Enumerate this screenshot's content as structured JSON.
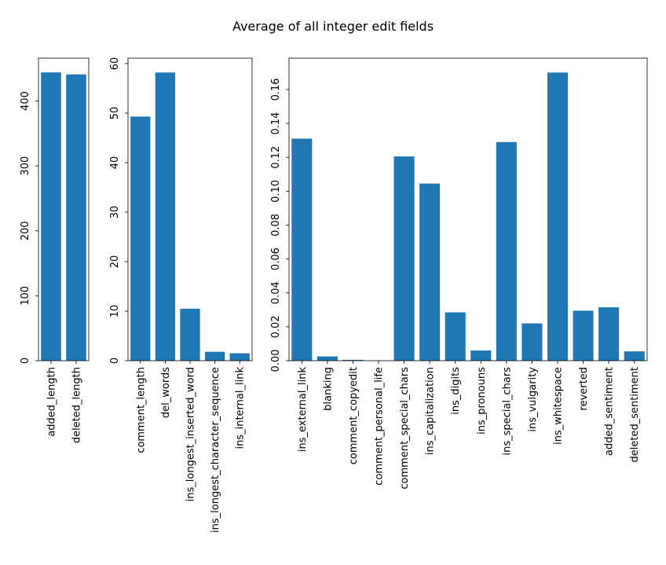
{
  "figure": {
    "title": "Average of all integer edit fields",
    "bar_color": "#1f77b4"
  },
  "chart_data": [
    {
      "type": "bar",
      "categories": [
        "added_length",
        "deleted_length"
      ],
      "values": [
        444,
        441
      ],
      "ylim": [
        0,
        466
      ],
      "yticks": [
        0,
        100,
        200,
        300,
        400
      ],
      "ytick_labels": [
        "0",
        "100",
        "200",
        "300",
        "400"
      ]
    },
    {
      "type": "bar",
      "categories": [
        "comment_length",
        "del_words",
        "ins_longest_inserted_word",
        "ins_longest_character_sequence",
        "ins_internal_link"
      ],
      "values": [
        49.3,
        58.2,
        10.5,
        1.8,
        1.5
      ],
      "ylim": [
        0,
        61.1
      ],
      "yticks": [
        0,
        10,
        20,
        30,
        40,
        50,
        60
      ],
      "ytick_labels": [
        "0",
        "10",
        "20",
        "30",
        "40",
        "50",
        "60"
      ]
    },
    {
      "type": "bar",
      "categories": [
        "ins_external_link",
        "blanking",
        "comment_copyedit",
        "comment_personal_life",
        "comment_special_chars",
        "ins_capitalization",
        "ins_digits",
        "ins_pronouns",
        "ins_special_chars",
        "ins_vulgarity",
        "ins_whitespace",
        "reverted",
        "added_sentiment",
        "deleted_sentiment"
      ],
      "values": [
        0.131,
        0.0025,
        0.0005,
        0.0,
        0.1205,
        0.1045,
        0.0285,
        0.006,
        0.129,
        0.022,
        0.17,
        0.0295,
        0.0315,
        0.0055
      ],
      "ylim": [
        0,
        0.1785
      ],
      "yticks": [
        0,
        0.02,
        0.04,
        0.06,
        0.08,
        0.1,
        0.12,
        0.14,
        0.16
      ],
      "ytick_labels": [
        "0.00",
        "0.02",
        "0.04",
        "0.06",
        "0.08",
        "0.10",
        "0.12",
        "0.14",
        "0.16"
      ]
    }
  ]
}
